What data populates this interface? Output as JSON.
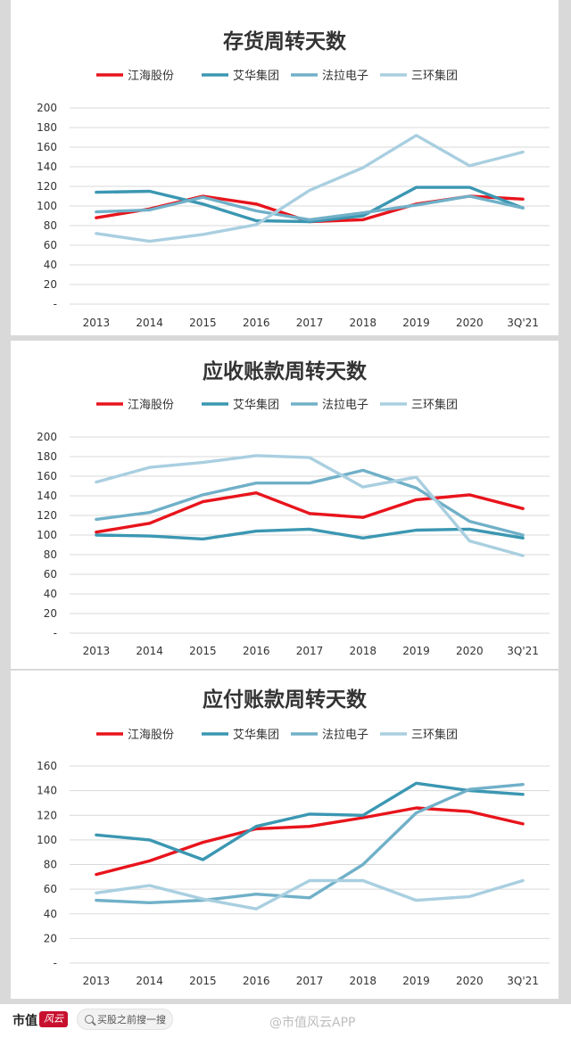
{
  "chart_data": [
    {
      "type": "line",
      "title": "存货周转天数",
      "categories": [
        "2013",
        "2014",
        "2015",
        "2016",
        "2017",
        "2018",
        "2019",
        "2020",
        "3Q'21"
      ],
      "y_ticks": [
        "200",
        "180",
        "160",
        "140",
        "120",
        "100",
        "80",
        "60",
        "40",
        "20",
        "-"
      ],
      "ylim": [
        0,
        200
      ],
      "grid": true,
      "legend_position": "top",
      "series": [
        {
          "name": "江海股份",
          "color": "#e8141c",
          "values": [
            88,
            97,
            110,
            102,
            84,
            86,
            102,
            110,
            107
          ]
        },
        {
          "name": "艾华集团",
          "color": "#3b97b2",
          "values": [
            114,
            115,
            102,
            85,
            84,
            90,
            119,
            119,
            98
          ]
        },
        {
          "name": "法拉电子",
          "color": "#70b0c8",
          "values": [
            94,
            96,
            109,
            95,
            86,
            93,
            101,
            110,
            98
          ]
        },
        {
          "name": "三环集团",
          "color": "#a9cfe0",
          "values": [
            72,
            64,
            71,
            81,
            116,
            139,
            172,
            141,
            155
          ]
        }
      ]
    },
    {
      "type": "line",
      "title": "应收账款周转天数",
      "categories": [
        "2013",
        "2014",
        "2015",
        "2016",
        "2017",
        "2018",
        "2019",
        "2020",
        "3Q'21"
      ],
      "y_ticks": [
        "200",
        "180",
        "160",
        "140",
        "120",
        "100",
        "80",
        "60",
        "40",
        "20",
        "-"
      ],
      "ylim": [
        0,
        200
      ],
      "grid": true,
      "legend_position": "top",
      "series": [
        {
          "name": "江海股份",
          "color": "#e8141c",
          "values": [
            103,
            112,
            134,
            143,
            122,
            118,
            136,
            141,
            127
          ]
        },
        {
          "name": "艾华集团",
          "color": "#3b97b2",
          "values": [
            100,
            99,
            96,
            104,
            106,
            97,
            105,
            106,
            97
          ]
        },
        {
          "name": "法拉电子",
          "color": "#70b0c8",
          "values": [
            116,
            123,
            141,
            153,
            153,
            166,
            148,
            114,
            100
          ]
        },
        {
          "name": "三环集团",
          "color": "#a9cfe0",
          "values": [
            154,
            169,
            174,
            181,
            179,
            149,
            159,
            94,
            79
          ]
        }
      ]
    },
    {
      "type": "line",
      "title": "应付账款周转天数",
      "categories": [
        "2013",
        "2014",
        "2015",
        "2016",
        "2017",
        "2018",
        "2019",
        "2020",
        "3Q'21"
      ],
      "y_ticks": [
        "160",
        "140",
        "120",
        "100",
        "80",
        "60",
        "40",
        "20",
        "-"
      ],
      "ylim": [
        0,
        160
      ],
      "grid": true,
      "legend_position": "top",
      "series": [
        {
          "name": "江海股份",
          "color": "#e8141c",
          "values": [
            72,
            83,
            98,
            109,
            111,
            118,
            126,
            123,
            113
          ]
        },
        {
          "name": "艾华集团",
          "color": "#3b97b2",
          "values": [
            104,
            100,
            84,
            111,
            121,
            120,
            146,
            140,
            137
          ]
        },
        {
          "name": "法拉电子",
          "color": "#70b0c8",
          "values": [
            51,
            49,
            51,
            56,
            53,
            80,
            122,
            141,
            145
          ]
        },
        {
          "name": "三环集团",
          "color": "#a9cfe0",
          "values": [
            57,
            63,
            52,
            44,
            67,
            67,
            51,
            54,
            67
          ]
        }
      ]
    }
  ],
  "footer": {
    "logo_text": "市值",
    "logo_badge": "风云",
    "search_text": "买股之前搜一搜",
    "watermark_text": "@市值风云APP"
  }
}
